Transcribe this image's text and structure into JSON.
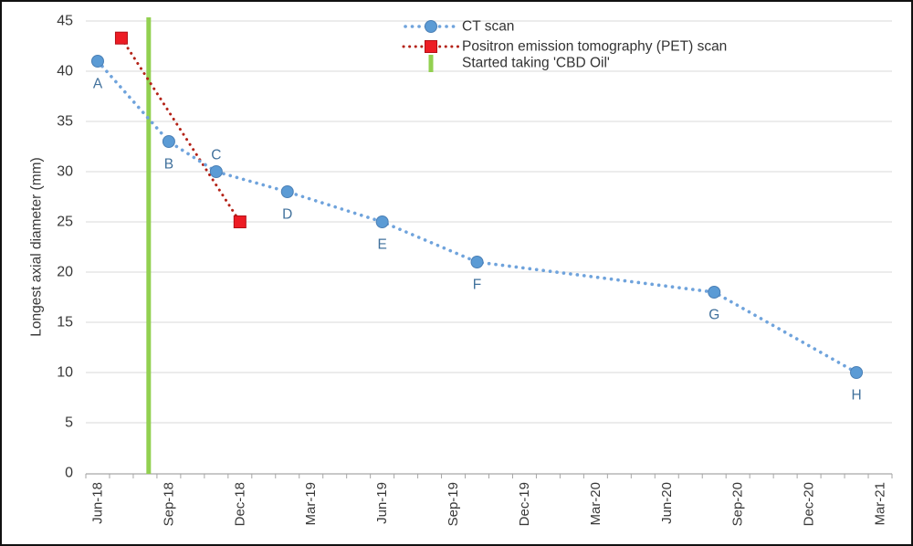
{
  "figure": {
    "background": "#ffffff",
    "border_color": "#111111"
  },
  "chart_data": {
    "type": "line",
    "title": "",
    "xlabel": "",
    "ylabel": "Longest axial diameter (mm)",
    "ylim": [
      0,
      45
    ],
    "ytick_step": 5,
    "y_ticks": [
      0,
      5,
      10,
      15,
      20,
      25,
      30,
      35,
      40,
      45
    ],
    "x_tick_labels": [
      "Jun-18",
      "Sep-18",
      "Dec-18",
      "Mar-19",
      "Jun-19",
      "Sep-19",
      "Dec-19",
      "Mar-20",
      "Jun-20",
      "Sep-20",
      "Dec-20",
      "Mar-21"
    ],
    "x_label_month_indices": [
      0,
      3,
      6,
      9,
      12,
      15,
      18,
      21,
      24,
      27,
      30,
      33
    ],
    "x_total_month_slots": 34,
    "grid": "horizontal gridlines only",
    "legend_position": "top center, no border",
    "legend": [
      "CT scan",
      "Positron emission tomography (PET) scan",
      "Started taking 'CBD Oil'"
    ],
    "colors": {
      "ct_marker": "#5b9bd5",
      "ct_marker_edge": "#4a7fb5",
      "ct_line": "#6fa3dc",
      "ct_point_label": "#41719c",
      "pet_marker": "#ed1c24",
      "pet_marker_edge": "#b30f16",
      "pet_line": "#b42318",
      "cbd_line": "#92d050",
      "gridline": "#d9d9d9",
      "axis_line": "#a6a6a6",
      "axis_text": "#383838"
    },
    "series": [
      {
        "name": "CT scan",
        "marker": "circle",
        "line_style": "dotted",
        "points": [
          {
            "label": "A",
            "x_month": "Jun-18",
            "month_index": 0,
            "value": 41,
            "label_position": "below"
          },
          {
            "label": "B",
            "x_month": "Sep-18",
            "month_index": 3,
            "value": 33,
            "label_position": "below"
          },
          {
            "label": "C",
            "x_month": "Nov-18",
            "month_index": 5,
            "value": 30,
            "label_position": "above"
          },
          {
            "label": "D",
            "x_month": "Feb-19",
            "month_index": 8,
            "value": 28,
            "label_position": "below"
          },
          {
            "label": "E",
            "x_month": "Jun-19",
            "month_index": 12,
            "value": 25,
            "label_position": "below"
          },
          {
            "label": "F",
            "x_month": "Oct-19",
            "month_index": 16,
            "value": 21,
            "label_position": "below"
          },
          {
            "label": "G",
            "x_month": "Aug-20",
            "month_index": 26,
            "value": 18,
            "label_position": "below"
          },
          {
            "label": "H",
            "x_month": "Feb-21",
            "month_index": 32,
            "value": 10,
            "label_position": "below"
          }
        ]
      },
      {
        "name": "Positron emission tomography (PET) scan",
        "marker": "square",
        "line_style": "dotted",
        "points": [
          {
            "x_month": "Jul-18",
            "month_index": 1,
            "value": 43.3
          },
          {
            "x_month": "Dec-18",
            "month_index": 6,
            "value": 25
          }
        ]
      }
    ],
    "annotation": {
      "label": "Started taking 'CBD Oil'",
      "type": "vertical-line",
      "x_month": "Aug-18",
      "month_index": 2.15
    }
  }
}
